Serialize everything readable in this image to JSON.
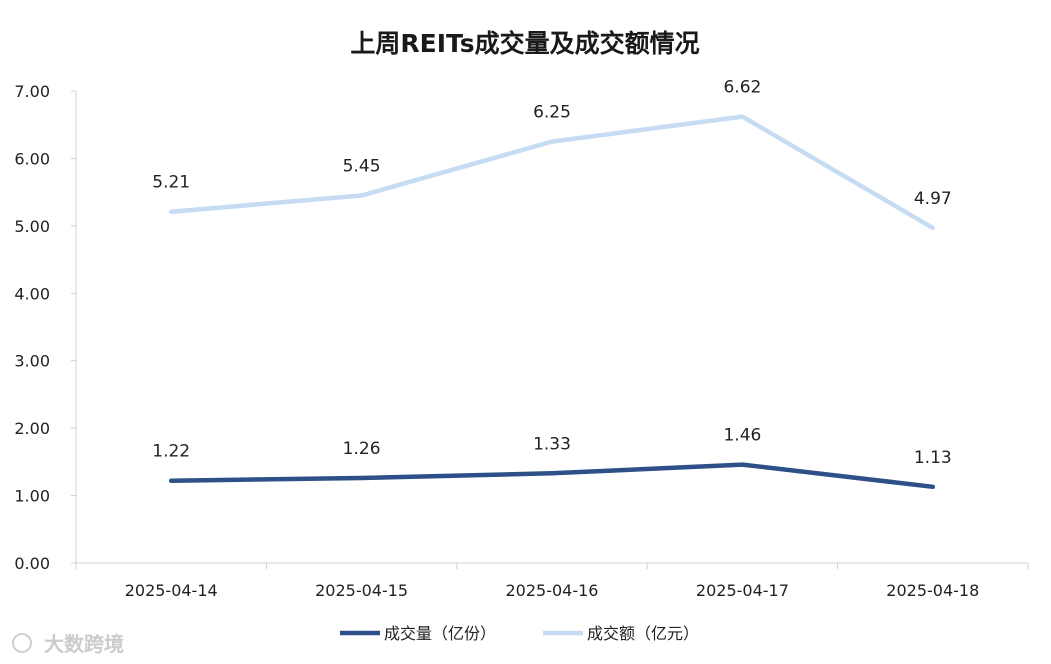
{
  "chart_data": {
    "type": "line",
    "title": "上周REITs成交量及成交额情况",
    "categories": [
      "2025-04-14",
      "2025-04-15",
      "2025-04-16",
      "2025-04-17",
      "2025-04-18"
    ],
    "series": [
      {
        "name": "成交量（亿份）",
        "values": [
          1.22,
          1.26,
          1.33,
          1.46,
          1.13
        ],
        "color": "#2e5088"
      },
      {
        "name": "成交额（亿元）",
        "values": [
          5.21,
          5.45,
          6.25,
          6.62,
          4.97
        ],
        "color": "#c6dcf2"
      }
    ],
    "y_ticks": [
      "0.00",
      "1.00",
      "2.00",
      "3.00",
      "4.00",
      "5.00",
      "6.00",
      "7.00"
    ],
    "ylim": [
      0,
      7
    ],
    "xlabel": "",
    "ylabel": "",
    "grid": false,
    "legend_position": "bottom"
  },
  "watermark": "大数跨境"
}
